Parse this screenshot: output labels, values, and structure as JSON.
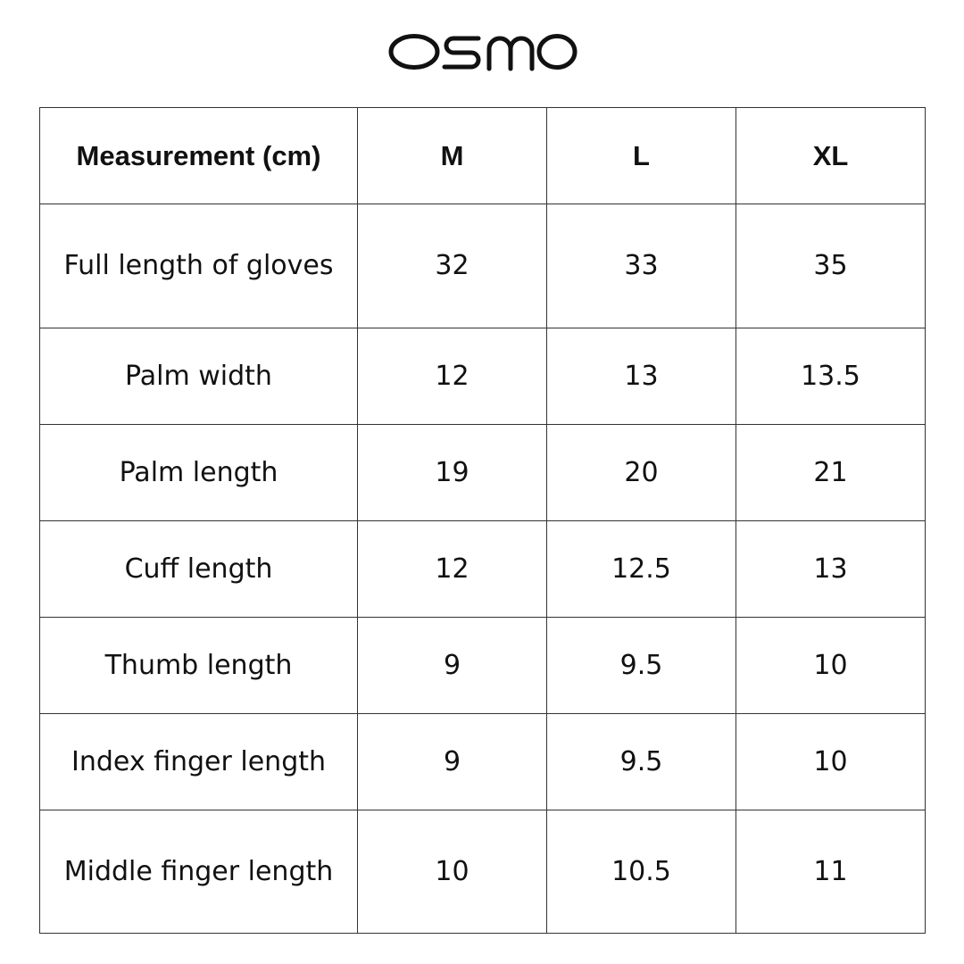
{
  "brand": {
    "logo_text": "osmo"
  },
  "table": {
    "headers": [
      "Measurement (cm)",
      "M",
      "L",
      "XL"
    ],
    "rows": [
      [
        "Full length of gloves",
        "32",
        "33",
        "35"
      ],
      [
        "Palm width",
        "12",
        "13",
        "13.5"
      ],
      [
        "Palm length",
        "19",
        "20",
        "21"
      ],
      [
        "Cuff length",
        "12",
        "12.5",
        "13"
      ],
      [
        "Thumb length",
        "9",
        "9.5",
        "10"
      ],
      [
        "Index finger length",
        "9",
        "9.5",
        "10"
      ],
      [
        "Middle finger length",
        "10",
        "10.5",
        "11"
      ]
    ]
  }
}
